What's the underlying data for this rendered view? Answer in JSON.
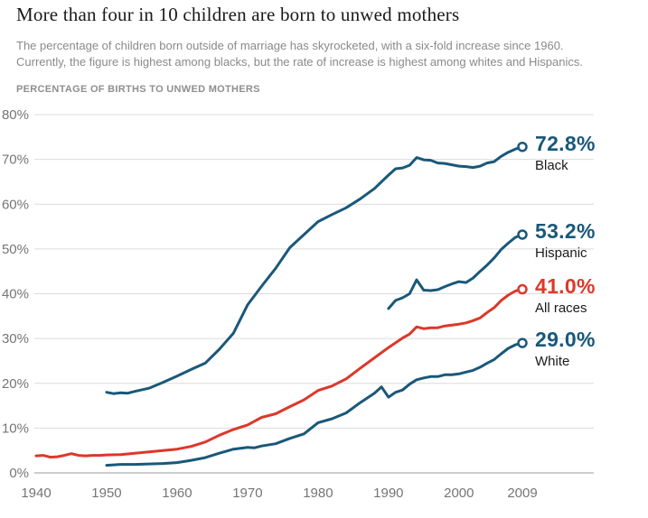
{
  "chart_data": {
    "type": "line",
    "title": "More than four in 10 children are born to unwed mothers",
    "subtitle": "The percentage of children born outside of marriage has skyrocketed, with a six-fold increase since 1960.\nCurrently, the figure is highest among blacks, but the rate of increase is highest among whites and Hispanics.",
    "axis_title": "PERCENTAGE OF BIRTHS TO UNWED MOTHERS",
    "xlabel": "",
    "ylabel": "Percentage of births to unwed mothers",
    "xlim": [
      1940,
      2009
    ],
    "ylim": [
      0,
      80
    ],
    "ytick_step": 10,
    "ytick_suffix": "%",
    "xticks": [
      1940,
      1950,
      1960,
      1970,
      1980,
      1990,
      2000,
      2009
    ],
    "grid": "horizontal",
    "legend_position": "end-of-line-labels",
    "colors": {
      "blue": "#19587a",
      "red": "#dc382a",
      "grid": "#dcdcdc",
      "axis": "#9a9a9a",
      "tick_text": "#757575"
    },
    "series": [
      {
        "name": "Black",
        "end_label": "72.8%",
        "color": "#19587a",
        "points": [
          [
            1950,
            18.0
          ],
          [
            1951,
            17.7
          ],
          [
            1952,
            17.9
          ],
          [
            1953,
            17.8
          ],
          [
            1954,
            18.2
          ],
          [
            1956,
            18.9
          ],
          [
            1958,
            20.2
          ],
          [
            1960,
            21.6
          ],
          [
            1962,
            23.1
          ],
          [
            1964,
            24.5
          ],
          [
            1966,
            27.6
          ],
          [
            1968,
            31.2
          ],
          [
            1970,
            37.5
          ],
          [
            1972,
            41.7
          ],
          [
            1974,
            45.7
          ],
          [
            1976,
            50.3
          ],
          [
            1978,
            53.2
          ],
          [
            1980,
            56.1
          ],
          [
            1982,
            57.7
          ],
          [
            1984,
            59.2
          ],
          [
            1986,
            61.2
          ],
          [
            1988,
            63.5
          ],
          [
            1990,
            66.5
          ],
          [
            1991,
            67.9
          ],
          [
            1992,
            68.1
          ],
          [
            1993,
            68.7
          ],
          [
            1994,
            70.4
          ],
          [
            1995,
            69.9
          ],
          [
            1996,
            69.8
          ],
          [
            1997,
            69.2
          ],
          [
            1998,
            69.1
          ],
          [
            1999,
            68.8
          ],
          [
            2000,
            68.5
          ],
          [
            2001,
            68.4
          ],
          [
            2002,
            68.2
          ],
          [
            2003,
            68.5
          ],
          [
            2004,
            69.2
          ],
          [
            2005,
            69.5
          ],
          [
            2006,
            70.7
          ],
          [
            2007,
            71.6
          ],
          [
            2008,
            72.3
          ],
          [
            2009,
            72.8
          ]
        ]
      },
      {
        "name": "Hispanic",
        "end_label": "53.2%",
        "color": "#19587a",
        "points": [
          [
            1990,
            36.7
          ],
          [
            1991,
            38.5
          ],
          [
            1992,
            39.1
          ],
          [
            1993,
            40.0
          ],
          [
            1994,
            43.1
          ],
          [
            1995,
            40.8
          ],
          [
            1996,
            40.7
          ],
          [
            1997,
            40.9
          ],
          [
            1998,
            41.6
          ],
          [
            1999,
            42.2
          ],
          [
            2000,
            42.7
          ],
          [
            2001,
            42.5
          ],
          [
            2002,
            43.5
          ],
          [
            2003,
            45.0
          ],
          [
            2004,
            46.4
          ],
          [
            2005,
            48.0
          ],
          [
            2006,
            49.9
          ],
          [
            2007,
            51.3
          ],
          [
            2008,
            52.6
          ],
          [
            2009,
            53.2
          ]
        ]
      },
      {
        "name": "All races",
        "end_label": "41.0%",
        "color": "#dc382a",
        "points": [
          [
            1940,
            3.8
          ],
          [
            1941,
            3.9
          ],
          [
            1942,
            3.5
          ],
          [
            1943,
            3.6
          ],
          [
            1944,
            3.9
          ],
          [
            1945,
            4.3
          ],
          [
            1946,
            3.9
          ],
          [
            1947,
            3.8
          ],
          [
            1948,
            3.9
          ],
          [
            1949,
            3.9
          ],
          [
            1950,
            4.0
          ],
          [
            1952,
            4.1
          ],
          [
            1954,
            4.4
          ],
          [
            1956,
            4.7
          ],
          [
            1958,
            5.0
          ],
          [
            1960,
            5.3
          ],
          [
            1962,
            5.9
          ],
          [
            1964,
            6.9
          ],
          [
            1966,
            8.4
          ],
          [
            1968,
            9.7
          ],
          [
            1970,
            10.7
          ],
          [
            1972,
            12.4
          ],
          [
            1974,
            13.2
          ],
          [
            1976,
            14.8
          ],
          [
            1978,
            16.3
          ],
          [
            1980,
            18.4
          ],
          [
            1982,
            19.4
          ],
          [
            1984,
            21.0
          ],
          [
            1986,
            23.4
          ],
          [
            1988,
            25.7
          ],
          [
            1990,
            28.0
          ],
          [
            1992,
            30.1
          ],
          [
            1993,
            31.0
          ],
          [
            1994,
            32.6
          ],
          [
            1995,
            32.2
          ],
          [
            1996,
            32.4
          ],
          [
            1997,
            32.4
          ],
          [
            1998,
            32.8
          ],
          [
            1999,
            33.0
          ],
          [
            2000,
            33.2
          ],
          [
            2001,
            33.5
          ],
          [
            2002,
            34.0
          ],
          [
            2003,
            34.6
          ],
          [
            2004,
            35.8
          ],
          [
            2005,
            36.9
          ],
          [
            2006,
            38.5
          ],
          [
            2007,
            39.7
          ],
          [
            2008,
            40.6
          ],
          [
            2009,
            41.0
          ]
        ]
      },
      {
        "name": "White",
        "end_label": "29.0%",
        "color": "#19587a",
        "points": [
          [
            1950,
            1.7
          ],
          [
            1952,
            1.9
          ],
          [
            1954,
            1.9
          ],
          [
            1956,
            2.0
          ],
          [
            1958,
            2.1
          ],
          [
            1960,
            2.3
          ],
          [
            1962,
            2.8
          ],
          [
            1964,
            3.4
          ],
          [
            1966,
            4.4
          ],
          [
            1968,
            5.3
          ],
          [
            1970,
            5.7
          ],
          [
            1971,
            5.6
          ],
          [
            1972,
            6.0
          ],
          [
            1974,
            6.5
          ],
          [
            1976,
            7.7
          ],
          [
            1978,
            8.7
          ],
          [
            1980,
            11.2
          ],
          [
            1982,
            12.1
          ],
          [
            1984,
            13.4
          ],
          [
            1986,
            15.7
          ],
          [
            1988,
            17.8
          ],
          [
            1989,
            19.2
          ],
          [
            1990,
            16.9
          ],
          [
            1991,
            18.0
          ],
          [
            1992,
            18.5
          ],
          [
            1993,
            19.8
          ],
          [
            1994,
            20.8
          ],
          [
            1995,
            21.2
          ],
          [
            1996,
            21.5
          ],
          [
            1997,
            21.5
          ],
          [
            1998,
            21.9
          ],
          [
            1999,
            21.9
          ],
          [
            2000,
            22.1
          ],
          [
            2001,
            22.5
          ],
          [
            2002,
            22.9
          ],
          [
            2003,
            23.6
          ],
          [
            2004,
            24.5
          ],
          [
            2005,
            25.3
          ],
          [
            2006,
            26.6
          ],
          [
            2007,
            27.8
          ],
          [
            2008,
            28.6
          ],
          [
            2009,
            29.0
          ]
        ]
      }
    ]
  }
}
